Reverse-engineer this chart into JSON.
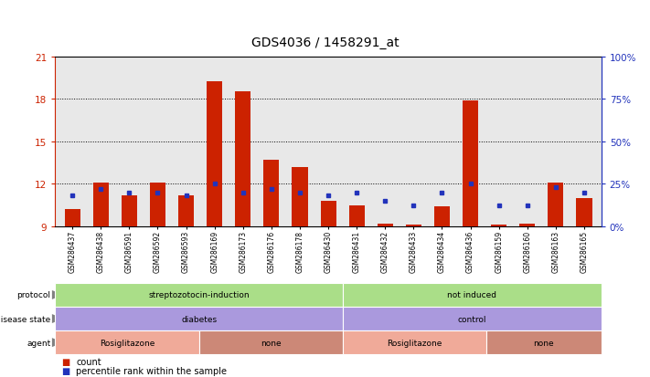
{
  "title": "GDS4036 / 1458291_at",
  "samples": [
    "GSM286437",
    "GSM286438",
    "GSM286591",
    "GSM286592",
    "GSM286593",
    "GSM286169",
    "GSM286173",
    "GSM286176",
    "GSM286178",
    "GSM286430",
    "GSM286431",
    "GSM286432",
    "GSM286433",
    "GSM286434",
    "GSM286436",
    "GSM286159",
    "GSM286160",
    "GSM286163",
    "GSM286165"
  ],
  "count_values": [
    10.2,
    12.1,
    11.2,
    12.1,
    11.2,
    19.2,
    18.5,
    13.7,
    13.2,
    10.8,
    10.5,
    9.2,
    9.1,
    10.4,
    17.9,
    9.1,
    9.2,
    12.1,
    11.0
  ],
  "percentile_values": [
    18,
    22,
    20,
    20,
    18,
    25,
    20,
    22,
    20,
    18,
    20,
    15,
    12,
    20,
    25,
    12,
    12,
    23,
    20
  ],
  "ymin": 9,
  "ymax": 21,
  "yticks_left": [
    9,
    12,
    15,
    18,
    21
  ],
  "yticks_right": [
    0,
    25,
    50,
    75,
    100
  ],
  "bar_color": "#cc2200",
  "dot_color": "#2233bb",
  "chart_bg": "#e8e8e8",
  "protocol_groups": [
    {
      "label": "streptozotocin-induction",
      "start": 0,
      "end": 10,
      "color": "#aade88"
    },
    {
      "label": "not induced",
      "start": 10,
      "end": 19,
      "color": "#aade88"
    }
  ],
  "disease_groups": [
    {
      "label": "diabetes",
      "start": 0,
      "end": 10,
      "color": "#aa99dd"
    },
    {
      "label": "control",
      "start": 10,
      "end": 19,
      "color": "#aa99dd"
    }
  ],
  "agent_groups": [
    {
      "label": "Rosiglitazone",
      "start": 0,
      "end": 5,
      "color": "#f0aa99"
    },
    {
      "label": "none",
      "start": 5,
      "end": 10,
      "color": "#cc8877"
    },
    {
      "label": "Rosiglitazone",
      "start": 10,
      "end": 15,
      "color": "#f0aa99"
    },
    {
      "label": "none",
      "start": 15,
      "end": 19,
      "color": "#cc8877"
    }
  ]
}
